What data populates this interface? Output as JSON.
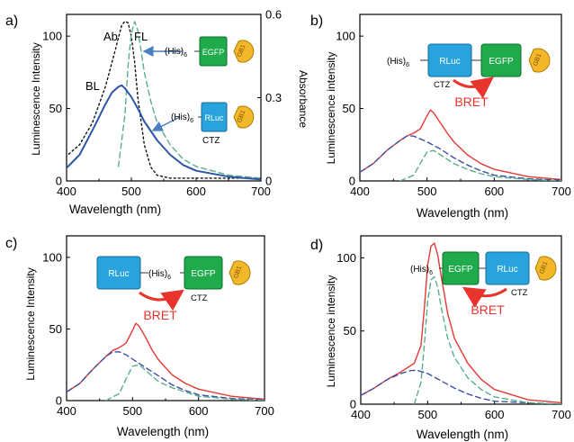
{
  "colors": {
    "ab": "#111111",
    "fl": "#5aae8a",
    "bl": "#2f55a6",
    "total": "#e53935",
    "comp_blue": "#3b4fa8",
    "comp_green": "#5aae8a",
    "rluc": "#29a3dd",
    "egfp": "#1faa4b",
    "gb1": "#f3b82a",
    "bret": "#e8342c",
    "arrow": "#4a7fc1"
  },
  "chart_data": [
    {
      "panel": "a)",
      "type": "line",
      "xlabel": "Wavelength (nm)",
      "ylabel": "Luminescence Intensity",
      "y2label": "Absorbance",
      "xlim": [
        400,
        700
      ],
      "ylim": [
        0,
        115
      ],
      "y2lim": [
        0,
        0.6
      ],
      "xticks": [
        400,
        500,
        600,
        700
      ],
      "yticks": [
        0,
        50,
        100
      ],
      "y2ticks": [
        0,
        0.3,
        0.6
      ],
      "y2tick_labels": [
        "0",
        "0.3",
        "0.6"
      ],
      "series": [
        {
          "name": "Ab",
          "style": "dotted",
          "axis": "right",
          "x": [
            375,
            400,
            420,
            440,
            460,
            475,
            485,
            490,
            495,
            500,
            505,
            510,
            520,
            530,
            540,
            560,
            600,
            700
          ],
          "y": [
            0.05,
            0.09,
            0.13,
            0.21,
            0.34,
            0.47,
            0.56,
            0.575,
            0.57,
            0.52,
            0.43,
            0.3,
            0.13,
            0.05,
            0.02,
            0.01,
            0.01,
            0.01
          ]
        },
        {
          "name": "FL",
          "style": "dashed",
          "axis": "left",
          "x": [
            480,
            490,
            495,
            500,
            505,
            510,
            515,
            520,
            530,
            540,
            560,
            580,
            600,
            650,
            700
          ],
          "y": [
            10,
            45,
            80,
            102,
            110,
            104,
            90,
            75,
            55,
            40,
            25,
            15,
            10,
            4,
            2
          ]
        },
        {
          "name": "BL",
          "style": "solid",
          "axis": "left",
          "x": [
            375,
            400,
            420,
            440,
            460,
            470,
            480,
            485,
            490,
            500,
            510,
            520,
            540,
            560,
            580,
            600,
            650,
            700
          ],
          "y": [
            5,
            9,
            18,
            35,
            53,
            61,
            65,
            66,
            64,
            58,
            50,
            41,
            28,
            18,
            11,
            7,
            3,
            1
          ]
        }
      ],
      "annotations": [
        "Ab",
        "FL",
        "BL"
      ]
    },
    {
      "panel": "b)",
      "type": "line",
      "xlabel": "Wavelength (nm)",
      "ylabel": "Luminescence  intensity",
      "xlim": [
        400,
        700
      ],
      "ylim": [
        0,
        115
      ],
      "xticks": [
        400,
        500,
        600,
        700
      ],
      "yticks": [
        0,
        50,
        100
      ],
      "series": [
        {
          "style": "solid",
          "color_key": "total",
          "x": [
            375,
            400,
            420,
            440,
            460,
            470,
            480,
            490,
            500,
            505,
            510,
            520,
            530,
            540,
            560,
            580,
            600,
            650,
            700
          ],
          "y": [
            3,
            6,
            12,
            21,
            28,
            31,
            33,
            36,
            45,
            49,
            47,
            40,
            33,
            27,
            18,
            12,
            8,
            3,
            1
          ]
        },
        {
          "style": "dashed",
          "color_key": "comp_blue",
          "x": [
            375,
            400,
            420,
            440,
            460,
            470,
            480,
            490,
            500,
            520,
            540,
            560,
            580,
            600,
            650,
            700
          ],
          "y": [
            3,
            6,
            12,
            21,
            28,
            31,
            31,
            29,
            27,
            22,
            16,
            11,
            7,
            4,
            1.5,
            0.5
          ]
        },
        {
          "style": "dashed",
          "color_key": "comp_green",
          "x": [
            460,
            480,
            490,
            500,
            510,
            520,
            530,
            540,
            560,
            580,
            600,
            650,
            700
          ],
          "y": [
            0,
            4,
            12,
            20,
            21,
            18,
            15,
            12,
            8,
            5,
            3,
            1,
            0
          ]
        }
      ]
    },
    {
      "panel": "c)",
      "type": "line",
      "xlabel": "Wavelength (nm)",
      "ylabel": "Luminescence  Intensity",
      "xlim": [
        400,
        700
      ],
      "ylim": [
        0,
        115
      ],
      "xticks": [
        400,
        500,
        600,
        700
      ],
      "yticks": [
        0,
        50,
        100
      ],
      "series": [
        {
          "style": "solid",
          "color_key": "total",
          "x": [
            375,
            400,
            420,
            440,
            460,
            470,
            480,
            490,
            500,
            505,
            510,
            520,
            530,
            540,
            560,
            580,
            600,
            650,
            700
          ],
          "y": [
            3,
            6,
            12,
            22,
            31,
            35,
            37,
            40,
            49,
            54,
            52,
            44,
            35,
            28,
            18,
            12,
            8,
            3,
            1
          ]
        },
        {
          "style": "dashed",
          "color_key": "comp_blue",
          "x": [
            375,
            400,
            420,
            440,
            460,
            470,
            480,
            490,
            500,
            520,
            540,
            560,
            580,
            600,
            650,
            700
          ],
          "y": [
            3,
            6,
            12,
            22,
            31,
            34,
            34,
            32,
            29,
            23,
            17,
            11,
            7,
            4,
            1.5,
            0.5
          ]
        },
        {
          "style": "dashed",
          "color_key": "comp_green",
          "x": [
            460,
            480,
            490,
            500,
            510,
            520,
            530,
            540,
            560,
            580,
            600,
            650,
            700
          ],
          "y": [
            0,
            5,
            15,
            24,
            25,
            21,
            17,
            13,
            9,
            6,
            3,
            1,
            0
          ]
        }
      ]
    },
    {
      "panel": "d)",
      "type": "line",
      "xlabel": "Wavelength (nm)",
      "ylabel": "Luminescence  intensity",
      "xlim": [
        400,
        700
      ],
      "ylim": [
        0,
        115
      ],
      "xticks": [
        400,
        500,
        600,
        700
      ],
      "yticks": [
        0,
        50,
        100
      ],
      "series": [
        {
          "style": "solid",
          "color_key": "total",
          "x": [
            375,
            400,
            420,
            440,
            460,
            480,
            490,
            495,
            500,
            505,
            510,
            515,
            520,
            530,
            540,
            560,
            580,
            600,
            650,
            700
          ],
          "y": [
            3,
            6,
            11,
            17,
            22,
            28,
            40,
            65,
            95,
            108,
            110,
            102,
            88,
            62,
            45,
            28,
            17,
            10,
            3,
            1
          ]
        },
        {
          "style": "dashed",
          "color_key": "comp_blue",
          "x": [
            375,
            400,
            420,
            440,
            460,
            475,
            485,
            500,
            520,
            540,
            560,
            580,
            600,
            650,
            700
          ],
          "y": [
            3,
            6,
            11,
            17,
            21,
            23,
            23,
            21,
            16,
            11,
            7,
            4,
            2,
            1,
            0
          ]
        },
        {
          "style": "dashed",
          "color_key": "comp_green",
          "x": [
            480,
            490,
            495,
            500,
            505,
            510,
            515,
            520,
            530,
            540,
            560,
            580,
            600,
            650,
            700
          ],
          "y": [
            0,
            15,
            40,
            70,
            85,
            87,
            80,
            67,
            45,
            32,
            18,
            10,
            5,
            1,
            0
          ]
        }
      ]
    }
  ],
  "constructs": {
    "a_egfp": {
      "his": "(His)",
      "sub": "6",
      "egfp": "EGFP",
      "gb1": "GB1"
    },
    "a_rluc": {
      "his": "(His)",
      "sub": "6",
      "rluc": "RLuc",
      "gb1": "GB1",
      "ctz": "CTZ"
    },
    "b": {
      "his": "(His)",
      "sub": "6",
      "rluc": "RLuc",
      "egfp": "EGFP",
      "gb1": "GB1",
      "ctz": "CTZ",
      "bret": "BRET"
    },
    "c": {
      "his": "(His)",
      "sub": "6",
      "rluc": "RLuc",
      "egfp": "EGFP",
      "gb1": "GB1",
      "ctz": "CTZ",
      "bret": "BRET"
    },
    "d": {
      "his": "(His)",
      "sub": "6",
      "rluc": "RLuc",
      "egfp": "EGFP",
      "gb1": "GB1",
      "ctz": "CTZ",
      "bret": "BRET"
    }
  }
}
